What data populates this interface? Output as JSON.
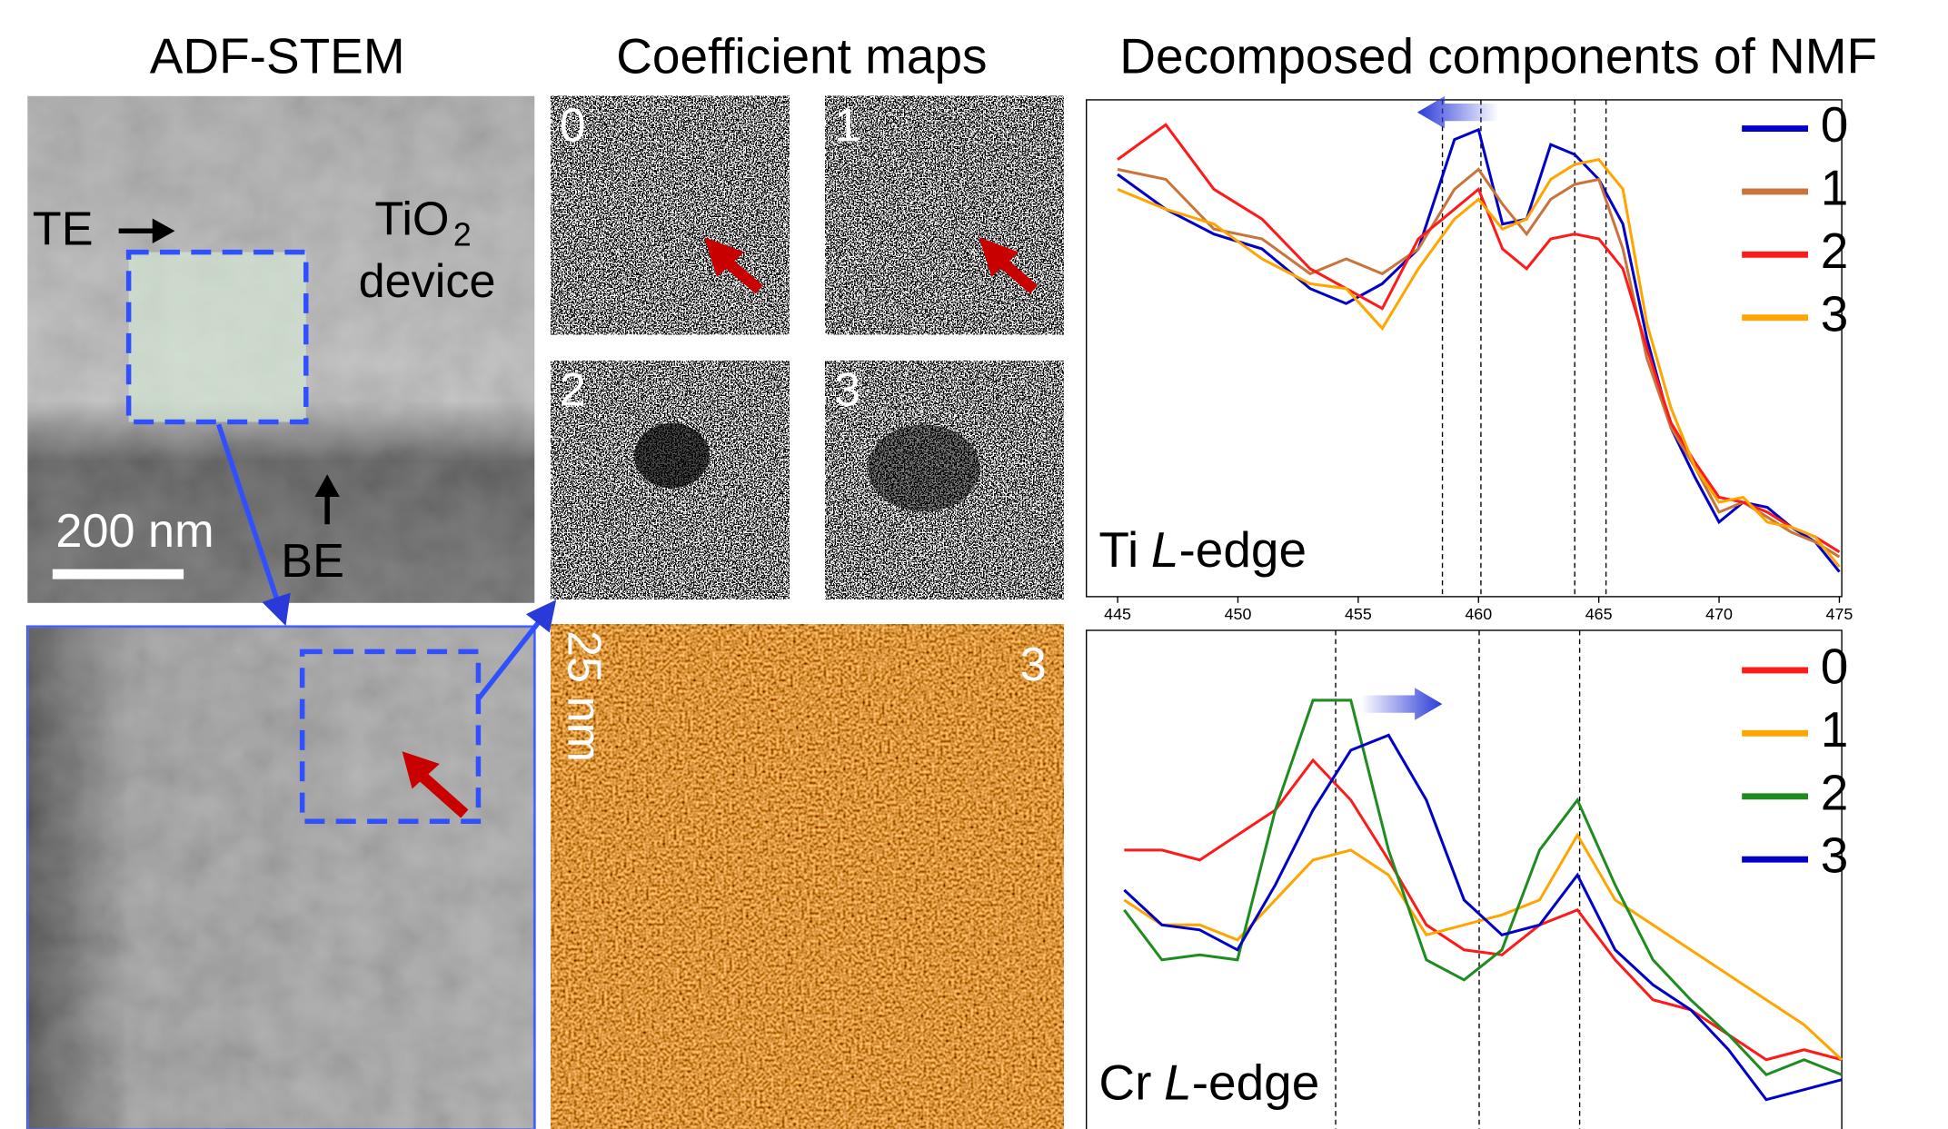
{
  "panels": {
    "stem": "ADF-STEM",
    "maps": "Coefficient maps",
    "nmf": "Decomposed components of NMF"
  },
  "stem_labels": {
    "te": "TE",
    "tio": "TiO",
    "sub": "2",
    "device": "device",
    "be": "BE",
    "scale": "200 nm"
  },
  "map_labels": [
    "0",
    "1",
    "2",
    "3"
  ],
  "map_large_label": "3",
  "map_scale": "25 nm",
  "chart_data": [
    {
      "type": "line",
      "label": {
        "element": "Ti",
        "letter": "L",
        "suffix": "-edge"
      },
      "x": [
        445,
        447,
        449,
        451,
        453,
        454.5,
        456,
        457.5,
        459,
        460,
        461,
        462,
        463,
        464,
        465,
        466,
        467,
        468,
        469,
        470,
        471,
        472,
        473,
        474,
        475
      ],
      "xlim": [
        443.7,
        475.1
      ],
      "xticks": [
        445,
        450,
        455,
        460,
        465,
        470,
        475
      ],
      "ylim": [
        0,
        1
      ],
      "vlines": [
        458.5,
        460.1,
        464,
        465.3
      ],
      "series": [
        {
          "name": "0",
          "color": "#0000c8",
          "values": [
            0.85,
            0.78,
            0.73,
            0.7,
            0.62,
            0.59,
            0.63,
            0.7,
            0.92,
            0.94,
            0.75,
            0.76,
            0.91,
            0.89,
            0.84,
            0.75,
            0.52,
            0.34,
            0.24,
            0.15,
            0.19,
            0.18,
            0.14,
            0.11,
            0.05
          ]
        },
        {
          "name": "1",
          "color": "#c8743a",
          "values": [
            0.86,
            0.84,
            0.74,
            0.72,
            0.65,
            0.68,
            0.65,
            0.7,
            0.82,
            0.86,
            0.79,
            0.73,
            0.8,
            0.83,
            0.84,
            0.7,
            0.48,
            0.34,
            0.26,
            0.17,
            0.19,
            0.16,
            0.13,
            0.11,
            0.08
          ]
        },
        {
          "name": "2",
          "color": "#ff1a1a",
          "values": [
            0.88,
            0.95,
            0.82,
            0.76,
            0.66,
            0.62,
            0.58,
            0.72,
            0.78,
            0.82,
            0.7,
            0.66,
            0.72,
            0.73,
            0.72,
            0.66,
            0.5,
            0.35,
            0.27,
            0.2,
            0.19,
            0.17,
            0.14,
            0.12,
            0.09
          ]
        },
        {
          "name": "3",
          "color": "#ffa500",
          "values": [
            0.82,
            0.78,
            0.75,
            0.68,
            0.63,
            0.62,
            0.54,
            0.66,
            0.76,
            0.8,
            0.74,
            0.76,
            0.84,
            0.87,
            0.88,
            0.82,
            0.55,
            0.38,
            0.26,
            0.19,
            0.2,
            0.15,
            0.14,
            0.12,
            0.06
          ]
        }
      ]
    },
    {
      "type": "line",
      "label": {
        "element": "Cr",
        "letter": "L",
        "suffix": "-edge"
      },
      "x": [
        5,
        10,
        15,
        20,
        25,
        30,
        35,
        40,
        45,
        50,
        55,
        60,
        65,
        70,
        75,
        80,
        85,
        90,
        95,
        100
      ],
      "xlim": [
        0,
        100
      ],
      "ylim": [
        0,
        1
      ],
      "vlines": [
        33,
        52,
        65.3
      ],
      "series": [
        {
          "name": "0",
          "color": "#ff1a1a",
          "values": [
            0.56,
            0.56,
            0.54,
            0.59,
            0.64,
            0.74,
            0.66,
            0.54,
            0.41,
            0.36,
            0.35,
            0.41,
            0.44,
            0.34,
            0.26,
            0.24,
            0.19,
            0.14,
            0.16,
            0.14
          ]
        },
        {
          "name": "1",
          "color": "#ffa500",
          "values": [
            0.46,
            0.41,
            0.41,
            0.38,
            0.46,
            0.54,
            0.56,
            0.51,
            0.39,
            0.41,
            0.43,
            0.46,
            0.59,
            0.46,
            0.41,
            0.36,
            0.31,
            0.26,
            0.21,
            0.14
          ]
        },
        {
          "name": "2",
          "color": "#1e8c1e",
          "values": [
            0.44,
            0.34,
            0.35,
            0.34,
            0.64,
            0.86,
            0.86,
            0.56,
            0.34,
            0.3,
            0.36,
            0.56,
            0.66,
            0.49,
            0.34,
            0.26,
            0.19,
            0.11,
            0.14,
            0.11
          ]
        },
        {
          "name": "3",
          "color": "#0000c8",
          "values": [
            0.48,
            0.41,
            0.4,
            0.36,
            0.49,
            0.64,
            0.76,
            0.79,
            0.66,
            0.46,
            0.39,
            0.41,
            0.51,
            0.36,
            0.29,
            0.24,
            0.16,
            0.06,
            0.08,
            0.1
          ]
        }
      ]
    }
  ]
}
